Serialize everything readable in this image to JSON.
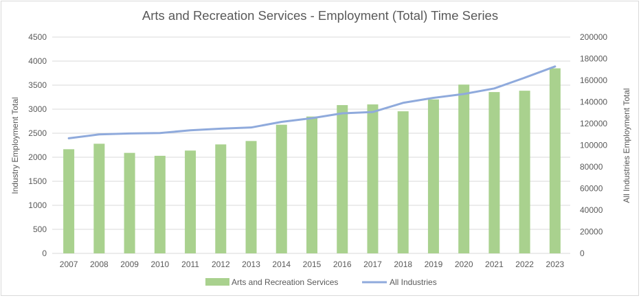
{
  "chart_data": {
    "type": "bar+line",
    "title": "Arts and Recreation Services - Employment (Total) Time Series",
    "ylabel": "Industry Employment Total",
    "y2label": "All Industries Employment Total",
    "categories": [
      "2007",
      "2008",
      "2009",
      "2010",
      "2011",
      "2012",
      "2013",
      "2014",
      "2015",
      "2016",
      "2017",
      "2018",
      "2019",
      "2020",
      "2021",
      "2022",
      "2023"
    ],
    "ylim": [
      0,
      4500
    ],
    "yticks": [
      0,
      500,
      1000,
      1500,
      2000,
      2500,
      3000,
      3500,
      4000,
      4500
    ],
    "y2lim": [
      0,
      200000
    ],
    "y2ticks": [
      0,
      20000,
      40000,
      60000,
      80000,
      100000,
      120000,
      140000,
      160000,
      180000,
      200000
    ],
    "grid": true,
    "legend_position": "bottom",
    "series": [
      {
        "name": "Arts and Recreation Services",
        "type": "bar",
        "axis": "left",
        "color": "#a9d18e",
        "values": [
          2167,
          2281,
          2091,
          2030,
          2139,
          2267,
          2338,
          2676,
          2847,
          3085,
          3099,
          2956,
          3203,
          3512,
          3356,
          3384,
          3850
        ]
      },
      {
        "name": "All Industries",
        "type": "line",
        "axis": "right",
        "color": "#8faadc",
        "values": [
          106400,
          110000,
          110900,
          111300,
          113800,
          115300,
          116400,
          121600,
          125000,
          129500,
          130700,
          139200,
          143800,
          147400,
          152500,
          162400,
          172800
        ]
      }
    ]
  }
}
